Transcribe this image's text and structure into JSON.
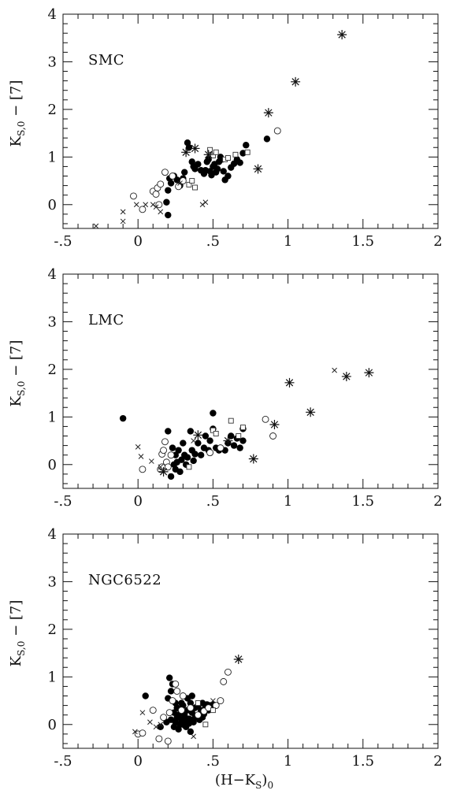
{
  "chart_data": [
    {
      "type": "scatter",
      "label": "SMC",
      "xlim": [
        -0.5,
        2
      ],
      "ylim": [
        -0.5,
        4
      ],
      "xticks": [
        "-.5",
        "0",
        ".5",
        "1",
        "1.5",
        "2"
      ],
      "yticks": [
        "0",
        "1",
        "2",
        "3",
        "4"
      ],
      "xlabel": "",
      "ylabel": "K_S,0 − [7]",
      "series": [
        {
          "marker": "filled-circle",
          "points": [
            [
              0.21,
              0.55
            ],
            [
              0.22,
              0.45
            ],
            [
              0.24,
              0.6
            ],
            [
              0.26,
              0.52
            ],
            [
              0.28,
              0.4
            ],
            [
              0.3,
              0.55
            ],
            [
              0.31,
              0.68
            ],
            [
              0.33,
              1.3
            ],
            [
              0.34,
              1.2
            ],
            [
              0.36,
              0.9
            ],
            [
              0.37,
              0.8
            ],
            [
              0.38,
              0.75
            ],
            [
              0.4,
              0.85
            ],
            [
              0.42,
              0.72
            ],
            [
              0.44,
              0.65
            ],
            [
              0.45,
              0.72
            ],
            [
              0.46,
              0.9
            ],
            [
              0.47,
              0.95
            ],
            [
              0.48,
              0.7
            ],
            [
              0.49,
              0.62
            ],
            [
              0.5,
              0.8
            ],
            [
              0.51,
              0.85
            ],
            [
              0.52,
              0.68
            ],
            [
              0.53,
              0.75
            ],
            [
              0.54,
              0.9
            ],
            [
              0.55,
              1.0
            ],
            [
              0.56,
              0.95
            ],
            [
              0.57,
              0.7
            ],
            [
              0.58,
              0.52
            ],
            [
              0.6,
              0.6
            ],
            [
              0.62,
              0.78
            ],
            [
              0.64,
              0.86
            ],
            [
              0.66,
              0.95
            ],
            [
              0.68,
              0.88
            ],
            [
              0.7,
              1.08
            ],
            [
              0.72,
              1.25
            ],
            [
              0.2,
              0.3
            ],
            [
              0.2,
              -0.22
            ],
            [
              0.19,
              0.05
            ],
            [
              0.86,
              1.38
            ]
          ]
        },
        {
          "marker": "open-circle",
          "points": [
            [
              -0.03,
              0.18
            ],
            [
              0.03,
              -0.1
            ],
            [
              0.1,
              0.28
            ],
            [
              0.12,
              0.22
            ],
            [
              0.13,
              0.35
            ],
            [
              0.15,
              0.43
            ],
            [
              0.14,
              0.0
            ],
            [
              0.18,
              0.68
            ],
            [
              0.27,
              0.38
            ],
            [
              0.3,
              0.5
            ],
            [
              0.93,
              1.55
            ],
            [
              0.23,
              0.6
            ]
          ]
        },
        {
          "marker": "cross",
          "points": [
            [
              -0.28,
              -0.45
            ],
            [
              -0.1,
              -0.35
            ],
            [
              -0.1,
              -0.15
            ],
            [
              -0.01,
              0.0
            ],
            [
              0.05,
              0.0
            ],
            [
              0.1,
              0.0
            ],
            [
              0.12,
              -0.05
            ],
            [
              0.15,
              -0.15
            ],
            [
              0.43,
              0.0
            ],
            [
              0.45,
              0.05
            ],
            [
              0.28,
              0.45
            ]
          ]
        },
        {
          "marker": "open-square",
          "points": [
            [
              0.34,
              0.42
            ],
            [
              0.36,
              0.5
            ],
            [
              0.38,
              0.36
            ],
            [
              0.5,
              1.03
            ],
            [
              0.52,
              1.1
            ],
            [
              0.58,
              0.95
            ],
            [
              0.6,
              0.98
            ],
            [
              0.65,
              1.05
            ],
            [
              0.73,
              1.1
            ],
            [
              0.48,
              1.15
            ]
          ]
        },
        {
          "marker": "asterisk",
          "points": [
            [
              1.36,
              3.57
            ],
            [
              1.05,
              2.58
            ],
            [
              0.87,
              1.93
            ],
            [
              0.8,
              0.75
            ],
            [
              0.32,
              1.1
            ],
            [
              0.38,
              1.18
            ],
            [
              0.47,
              1.05
            ]
          ]
        }
      ]
    },
    {
      "type": "scatter",
      "label": "LMC",
      "xlim": [
        -0.5,
        2
      ],
      "ylim": [
        -0.5,
        4
      ],
      "xticks": [
        "-.5",
        "0",
        ".5",
        "1",
        "1.5",
        "2"
      ],
      "yticks": [
        "0",
        "1",
        "2",
        "3",
        "4"
      ],
      "xlabel": "",
      "ylabel": "K_S,0 − [7]",
      "series": [
        {
          "marker": "filled-circle",
          "points": [
            [
              -0.1,
              0.97
            ],
            [
              0.2,
              0.7
            ],
            [
              0.22,
              -0.25
            ],
            [
              0.24,
              0.0
            ],
            [
              0.25,
              0.2
            ],
            [
              0.26,
              0.05
            ],
            [
              0.27,
              0.3
            ],
            [
              0.28,
              -0.15
            ],
            [
              0.29,
              0.1
            ],
            [
              0.3,
              0.45
            ],
            [
              0.31,
              0.2
            ],
            [
              0.32,
              0.0
            ],
            [
              0.33,
              0.15
            ],
            [
              0.35,
              0.7
            ],
            [
              0.36,
              0.3
            ],
            [
              0.37,
              0.08
            ],
            [
              0.38,
              0.22
            ],
            [
              0.4,
              0.45
            ],
            [
              0.42,
              0.2
            ],
            [
              0.44,
              0.35
            ],
            [
              0.45,
              0.6
            ],
            [
              0.47,
              0.3
            ],
            [
              0.48,
              0.5
            ],
            [
              0.5,
              0.75
            ],
            [
              0.52,
              0.35
            ],
            [
              0.54,
              0.3
            ],
            [
              0.5,
              1.08
            ],
            [
              0.58,
              0.3
            ],
            [
              0.6,
              0.45
            ],
            [
              0.62,
              0.6
            ],
            [
              0.64,
              0.4
            ],
            [
              0.66,
              0.55
            ],
            [
              0.68,
              0.35
            ],
            [
              0.7,
              0.75
            ],
            [
              0.7,
              0.5
            ],
            [
              0.25,
              -0.1
            ],
            [
              0.23,
              0.35
            ]
          ]
        },
        {
          "marker": "open-circle",
          "points": [
            [
              0.03,
              -0.1
            ],
            [
              0.16,
              0.22
            ],
            [
              0.17,
              0.3
            ],
            [
              0.18,
              0.48
            ],
            [
              0.19,
              0.05
            ],
            [
              0.2,
              -0.05
            ],
            [
              0.15,
              -0.1
            ],
            [
              0.16,
              -0.05
            ],
            [
              0.22,
              0.2
            ],
            [
              0.48,
              0.25
            ],
            [
              0.85,
              0.95
            ],
            [
              0.9,
              0.6
            ],
            [
              0.55,
              0.35
            ]
          ]
        },
        {
          "marker": "cross",
          "points": [
            [
              0.0,
              0.37
            ],
            [
              0.02,
              0.17
            ],
            [
              0.09,
              0.07
            ],
            [
              0.15,
              -0.05
            ],
            [
              1.31,
              1.98
            ],
            [
              0.37,
              0.5
            ]
          ]
        },
        {
          "marker": "open-square",
          "points": [
            [
              0.5,
              0.72
            ],
            [
              0.52,
              0.65
            ],
            [
              0.62,
              0.92
            ],
            [
              0.67,
              0.6
            ],
            [
              0.7,
              0.78
            ],
            [
              0.34,
              -0.05
            ]
          ]
        },
        {
          "marker": "asterisk",
          "points": [
            [
              1.54,
              1.93
            ],
            [
              1.39,
              1.85
            ],
            [
              1.01,
              1.72
            ],
            [
              1.15,
              1.1
            ],
            [
              0.91,
              0.84
            ],
            [
              0.77,
              0.12
            ],
            [
              0.17,
              -0.15
            ],
            [
              0.4,
              0.62
            ],
            [
              0.6,
              0.5
            ]
          ]
        }
      ]
    },
    {
      "type": "scatter",
      "label": "NGC6522",
      "xlim": [
        -0.5,
        2
      ],
      "ylim": [
        -0.5,
        4
      ],
      "xticks": [
        "-.5",
        "0",
        ".5",
        "1",
        "1.5",
        "2"
      ],
      "yticks": [
        "0",
        "1",
        "2",
        "3",
        "4"
      ],
      "xlabel": "(H−K_S)_0",
      "ylabel": "K_S,0 − [7]",
      "series": [
        {
          "marker": "filled-circle",
          "points": [
            [
              0.05,
              0.6
            ],
            [
              0.15,
              -0.05
            ],
            [
              0.2,
              0.55
            ],
            [
              0.22,
              0.7
            ],
            [
              0.24,
              0.25
            ],
            [
              0.25,
              0.45
            ],
            [
              0.25,
              0.05
            ],
            [
              0.26,
              0.15
            ],
            [
              0.27,
              -0.1
            ],
            [
              0.28,
              0.32
            ],
            [
              0.29,
              0.1
            ],
            [
              0.3,
              0.0
            ],
            [
              0.3,
              0.4
            ],
            [
              0.31,
              0.2
            ],
            [
              0.32,
              -0.05
            ],
            [
              0.33,
              0.3
            ],
            [
              0.34,
              0.12
            ],
            [
              0.35,
              0.45
            ],
            [
              0.35,
              -0.15
            ],
            [
              0.36,
              0.25
            ],
            [
              0.37,
              0.05
            ],
            [
              0.38,
              0.35
            ],
            [
              0.39,
              0.18
            ],
            [
              0.4,
              0.4
            ],
            [
              0.41,
              0.1
            ],
            [
              0.42,
              0.3
            ],
            [
              0.43,
              0.45
            ],
            [
              0.44,
              0.22
            ],
            [
              0.45,
              0.35
            ],
            [
              0.46,
              0.42
            ],
            [
              0.47,
              0.3
            ],
            [
              0.48,
              0.4
            ],
            [
              0.5,
              0.42
            ],
            [
              0.21,
              0.98
            ],
            [
              0.23,
              0.85
            ],
            [
              0.22,
              0.1
            ],
            [
              0.26,
              0.35
            ],
            [
              0.29,
              0.45
            ],
            [
              0.33,
              0.55
            ],
            [
              0.36,
              0.6
            ],
            [
              0.28,
              0.0
            ],
            [
              0.31,
              0.08
            ],
            [
              0.34,
              0.02
            ],
            [
              0.38,
              0.15
            ],
            [
              0.24,
              -0.05
            ],
            [
              0.27,
              0.2
            ],
            [
              0.43,
              0.15
            ],
            [
              0.19,
              0.05
            ]
          ]
        },
        {
          "marker": "open-circle",
          "points": [
            [
              0.0,
              -0.2
            ],
            [
              0.03,
              -0.18
            ],
            [
              0.1,
              0.3
            ],
            [
              0.14,
              -0.3
            ],
            [
              0.2,
              -0.35
            ],
            [
              0.55,
              0.5
            ],
            [
              0.57,
              0.9
            ],
            [
              0.6,
              1.1
            ],
            [
              0.52,
              0.4
            ],
            [
              0.21,
              0.25
            ],
            [
              0.23,
              0.5
            ],
            [
              0.26,
              0.7
            ],
            [
              0.3,
              0.6
            ],
            [
              0.35,
              0.35
            ],
            [
              0.4,
              0.2
            ],
            [
              0.44,
              0.28
            ],
            [
              0.47,
              0.35
            ],
            [
              0.25,
              0.85
            ],
            [
              0.17,
              0.15
            ],
            [
              0.29,
              0.3
            ]
          ]
        },
        {
          "marker": "cross",
          "points": [
            [
              -0.02,
              -0.15
            ],
            [
              0.03,
              0.25
            ],
            [
              0.08,
              0.05
            ],
            [
              0.12,
              -0.05
            ],
            [
              0.15,
              0.0
            ],
            [
              0.37,
              -0.25
            ],
            [
              0.5,
              0.5
            ]
          ]
        },
        {
          "marker": "open-square",
          "points": [
            [
              0.45,
              0.0
            ],
            [
              0.5,
              0.3
            ],
            [
              0.4,
              0.45
            ]
          ]
        },
        {
          "marker": "asterisk",
          "points": [
            [
              0.67,
              1.37
            ]
          ]
        }
      ]
    }
  ],
  "figure": {
    "ylabel_main": "K",
    "ylabel_sub": "S,0",
    "ylabel_rest": " − [7]",
    "xlabel_main": "(H−K",
    "xlabel_sub": "S",
    "xlabel_close": ")",
    "xlabel_sub2": "0"
  }
}
